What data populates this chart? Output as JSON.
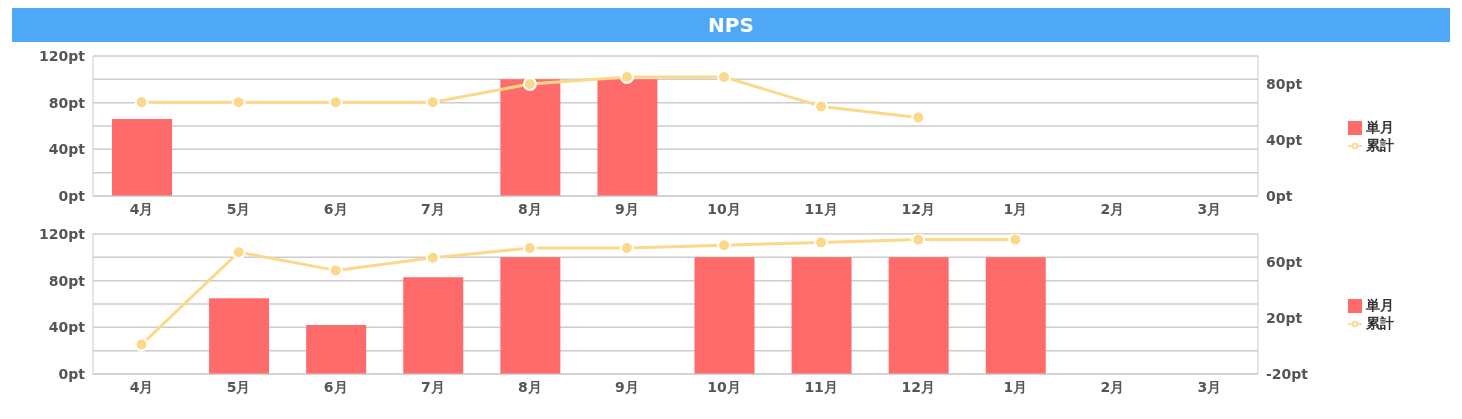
{
  "chart_data": [
    {
      "type": "bar",
      "title": "NPS",
      "categories": [
        "4月",
        "5月",
        "6月",
        "7月",
        "8月",
        "9月",
        "10月",
        "11月",
        "12月",
        "1月",
        "2月",
        "3月"
      ],
      "series": [
        {
          "name": "単月",
          "color": "#ff6b6b",
          "values": [
            66,
            null,
            null,
            null,
            100,
            100,
            null,
            null,
            null,
            null,
            null,
            null
          ]
        },
        {
          "name": "累計",
          "type": "line",
          "axis": "y2",
          "color": "#fcd98a",
          "values": [
            67,
            67,
            67,
            67,
            80,
            85,
            85,
            64,
            56,
            null,
            null,
            null
          ]
        }
      ],
      "ylim": [
        0,
        120
      ],
      "yticks": [
        {
          "value": 0,
          "label": "0pt"
        },
        {
          "value": 20,
          "label": null
        },
        {
          "value": 40,
          "label": "40pt"
        },
        {
          "value": 60,
          "label": null
        },
        {
          "value": 80,
          "label": "80pt"
        },
        {
          "value": 100,
          "label": null
        },
        {
          "value": 120,
          "label": "120pt"
        }
      ],
      "y2lim": [
        0,
        100
      ],
      "y2ticks": [
        {
          "value": 0,
          "label": "0pt"
        },
        {
          "value": 40,
          "label": "40pt"
        },
        {
          "value": 80,
          "label": "80pt"
        }
      ],
      "grid": "y",
      "legend": "right",
      "marker": "circle"
    },
    {
      "type": "bar",
      "categories": [
        "4月",
        "5月",
        "6月",
        "7月",
        "8月",
        "9月",
        "10月",
        "11月",
        "12月",
        "1月",
        "2月",
        "3月"
      ],
      "series": [
        {
          "name": "単月",
          "color": "#ff6b6b",
          "values": [
            null,
            65,
            42,
            83,
            100,
            null,
            100,
            100,
            100,
            100,
            null,
            null
          ]
        },
        {
          "name": "累計",
          "type": "line",
          "axis": "y2",
          "color": "#fcd98a",
          "values": [
            1,
            67,
            54,
            63,
            70,
            70,
            72,
            74,
            76,
            76,
            null,
            null
          ]
        }
      ],
      "ylim": [
        0,
        120
      ],
      "yticks": [
        {
          "value": 0,
          "label": "0pt"
        },
        {
          "value": 20,
          "label": null
        },
        {
          "value": 40,
          "label": "40pt"
        },
        {
          "value": 60,
          "label": null
        },
        {
          "value": 80,
          "label": "80pt"
        },
        {
          "value": 100,
          "label": null
        },
        {
          "value": 120,
          "label": "120pt"
        }
      ],
      "y2lim": [
        -20,
        80
      ],
      "y2ticks": [
        {
          "value": -20,
          "label": "-20pt"
        },
        {
          "value": 20,
          "label": "20pt"
        },
        {
          "value": 60,
          "label": "60pt"
        }
      ],
      "grid": "y",
      "legend": "right",
      "marker": "circle"
    }
  ]
}
